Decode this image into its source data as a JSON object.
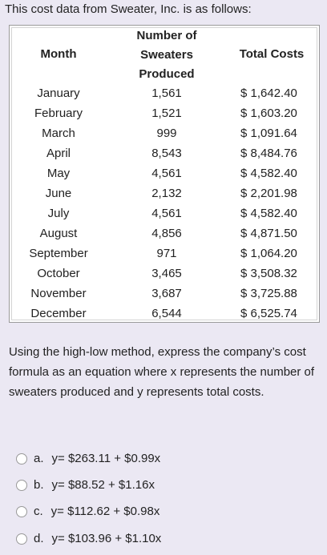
{
  "intro": "This cost data from Sweater, Inc. is as follows:",
  "table": {
    "headers": [
      "Month",
      "Number of Sweaters Produced",
      "Total Costs"
    ],
    "rows": [
      [
        "January",
        "1,561",
        "$ 1,642.40"
      ],
      [
        "February",
        "1,521",
        "$ 1,603.20"
      ],
      [
        "March",
        "999",
        "$ 1,091.64"
      ],
      [
        "April",
        "8,543",
        "$ 8,484.76"
      ],
      [
        "May",
        "4,561",
        "$ 4,582.40"
      ],
      [
        "June",
        "2,132",
        "$ 2,201.98"
      ],
      [
        "July",
        "4,561",
        "$ 4,582.40"
      ],
      [
        "August",
        "4,856",
        "$ 4,871.50"
      ],
      [
        "September",
        "971",
        "$ 1,064.20"
      ],
      [
        "October",
        "3,465",
        "$ 3,508.32"
      ],
      [
        "November",
        "3,687",
        "$ 3,725.88"
      ],
      [
        "December",
        "6,544",
        "$ 6,525.74"
      ]
    ]
  },
  "question": "Using the high-low method, express the company’s cost formula as an equation where x represents the number of sweaters produced and y represents total costs.",
  "options": [
    {
      "letter": "a.",
      "text": "y= $263.11 + $0.99x"
    },
    {
      "letter": "b.",
      "text": "y= $88.52 + $1.16x"
    },
    {
      "letter": "c.",
      "text": "y= $112.62 + $0.98x"
    },
    {
      "letter": "d.",
      "text": "y= $103.96 + $1.10x"
    }
  ]
}
